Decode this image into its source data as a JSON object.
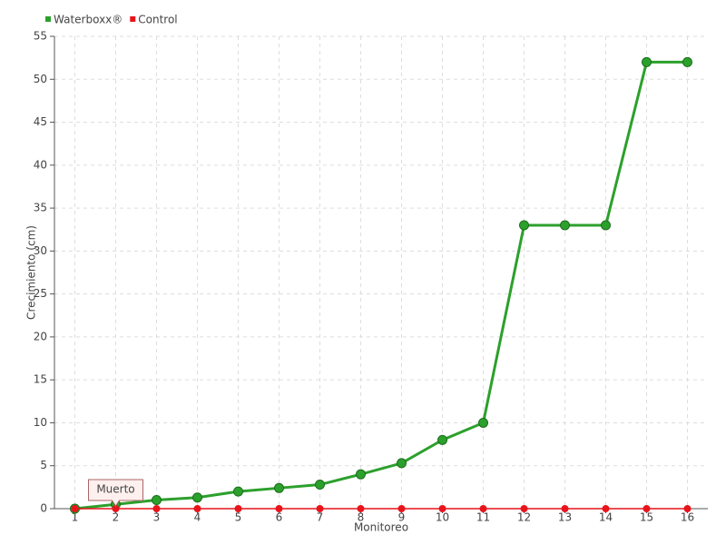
{
  "chart_data": {
    "type": "line",
    "categories": [
      "1",
      "2",
      "3",
      "4",
      "5",
      "6",
      "7",
      "8",
      "9",
      "10",
      "11",
      "12",
      "13",
      "14",
      "15",
      "16"
    ],
    "series": [
      {
        "name": "Waterboxx®",
        "color": "#2ca02c",
        "values": [
          0,
          0.5,
          1,
          1.3,
          2,
          2.4,
          2.8,
          4,
          5.3,
          8,
          10,
          33,
          33,
          33,
          52,
          52
        ]
      },
      {
        "name": "Control",
        "color": "#e8141b",
        "values": [
          0,
          0,
          0,
          0,
          0,
          0,
          0,
          0,
          0,
          0,
          0,
          0,
          0,
          0,
          0,
          0
        ]
      }
    ],
    "x_label": "Monitoreo",
    "y_label": "Crecimiento (cm)",
    "annotation": "Muerto",
    "ylim": [
      0,
      55
    ],
    "yticks": [
      0,
      5,
      10,
      15,
      20,
      25,
      30,
      35,
      40,
      45,
      50,
      55
    ],
    "grid": true,
    "legend": "top-left"
  }
}
